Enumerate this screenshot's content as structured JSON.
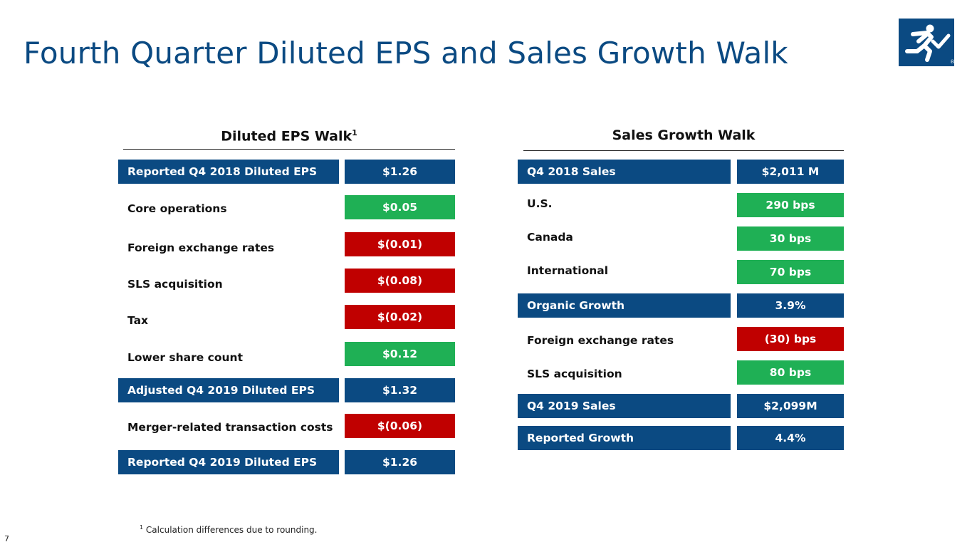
{
  "title": "Fourth Quarter Diluted EPS and Sales Growth Walk",
  "logo": {
    "icon": "runner-checkmark-logo",
    "mark": "®"
  },
  "eps_walk": {
    "heading": "Diluted EPS Walk",
    "heading_sup": "1",
    "rows": [
      {
        "label": "Reported Q4 2018 Diluted EPS",
        "value": "$1.26",
        "type": "total"
      },
      {
        "label": "Core operations",
        "value": "$0.05",
        "type": "positive"
      },
      {
        "label": "Foreign exchange rates",
        "value": "$(0.01)",
        "type": "negative"
      },
      {
        "label": "SLS acquisition",
        "value": "$(0.08)",
        "type": "negative"
      },
      {
        "label": "Tax",
        "value": "$(0.02)",
        "type": "negative"
      },
      {
        "label": "Lower share count",
        "value": "$0.12",
        "type": "positive"
      },
      {
        "label": "Adjusted Q4 2019 Diluted EPS",
        "value": "$1.32",
        "type": "total"
      },
      {
        "label": "Merger-related transaction costs",
        "value": "$(0.06)",
        "type": "negative"
      },
      {
        "label": "Reported Q4 2019 Diluted EPS",
        "value": "$1.26",
        "type": "total"
      }
    ]
  },
  "sales_walk": {
    "heading": "Sales Growth Walk",
    "rows": [
      {
        "label": "Q4 2018 Sales",
        "value": "$2,011 M",
        "type": "total"
      },
      {
        "label": "U.S.",
        "value": "290 bps",
        "type": "positive"
      },
      {
        "label": "Canada",
        "value": "30 bps",
        "type": "positive"
      },
      {
        "label": "International",
        "value": "70 bps",
        "type": "positive"
      },
      {
        "label": "Organic Growth",
        "value": "3.9%",
        "type": "total"
      },
      {
        "label": "Foreign exchange rates",
        "value": "(30) bps",
        "type": "negative"
      },
      {
        "label": "SLS acquisition",
        "value": "80 bps",
        "type": "positive"
      },
      {
        "label": "Q4 2019 Sales",
        "value": "$2,099M",
        "type": "total"
      },
      {
        "label": "Reported Growth",
        "value": "4.4%",
        "type": "total"
      }
    ]
  },
  "footnote": {
    "marker": "1",
    "text": "Calculation differences due to rounding."
  },
  "page_number": "7",
  "colors": {
    "navy": "#0b4a82",
    "green": "#1fb055",
    "red": "#c00000"
  }
}
